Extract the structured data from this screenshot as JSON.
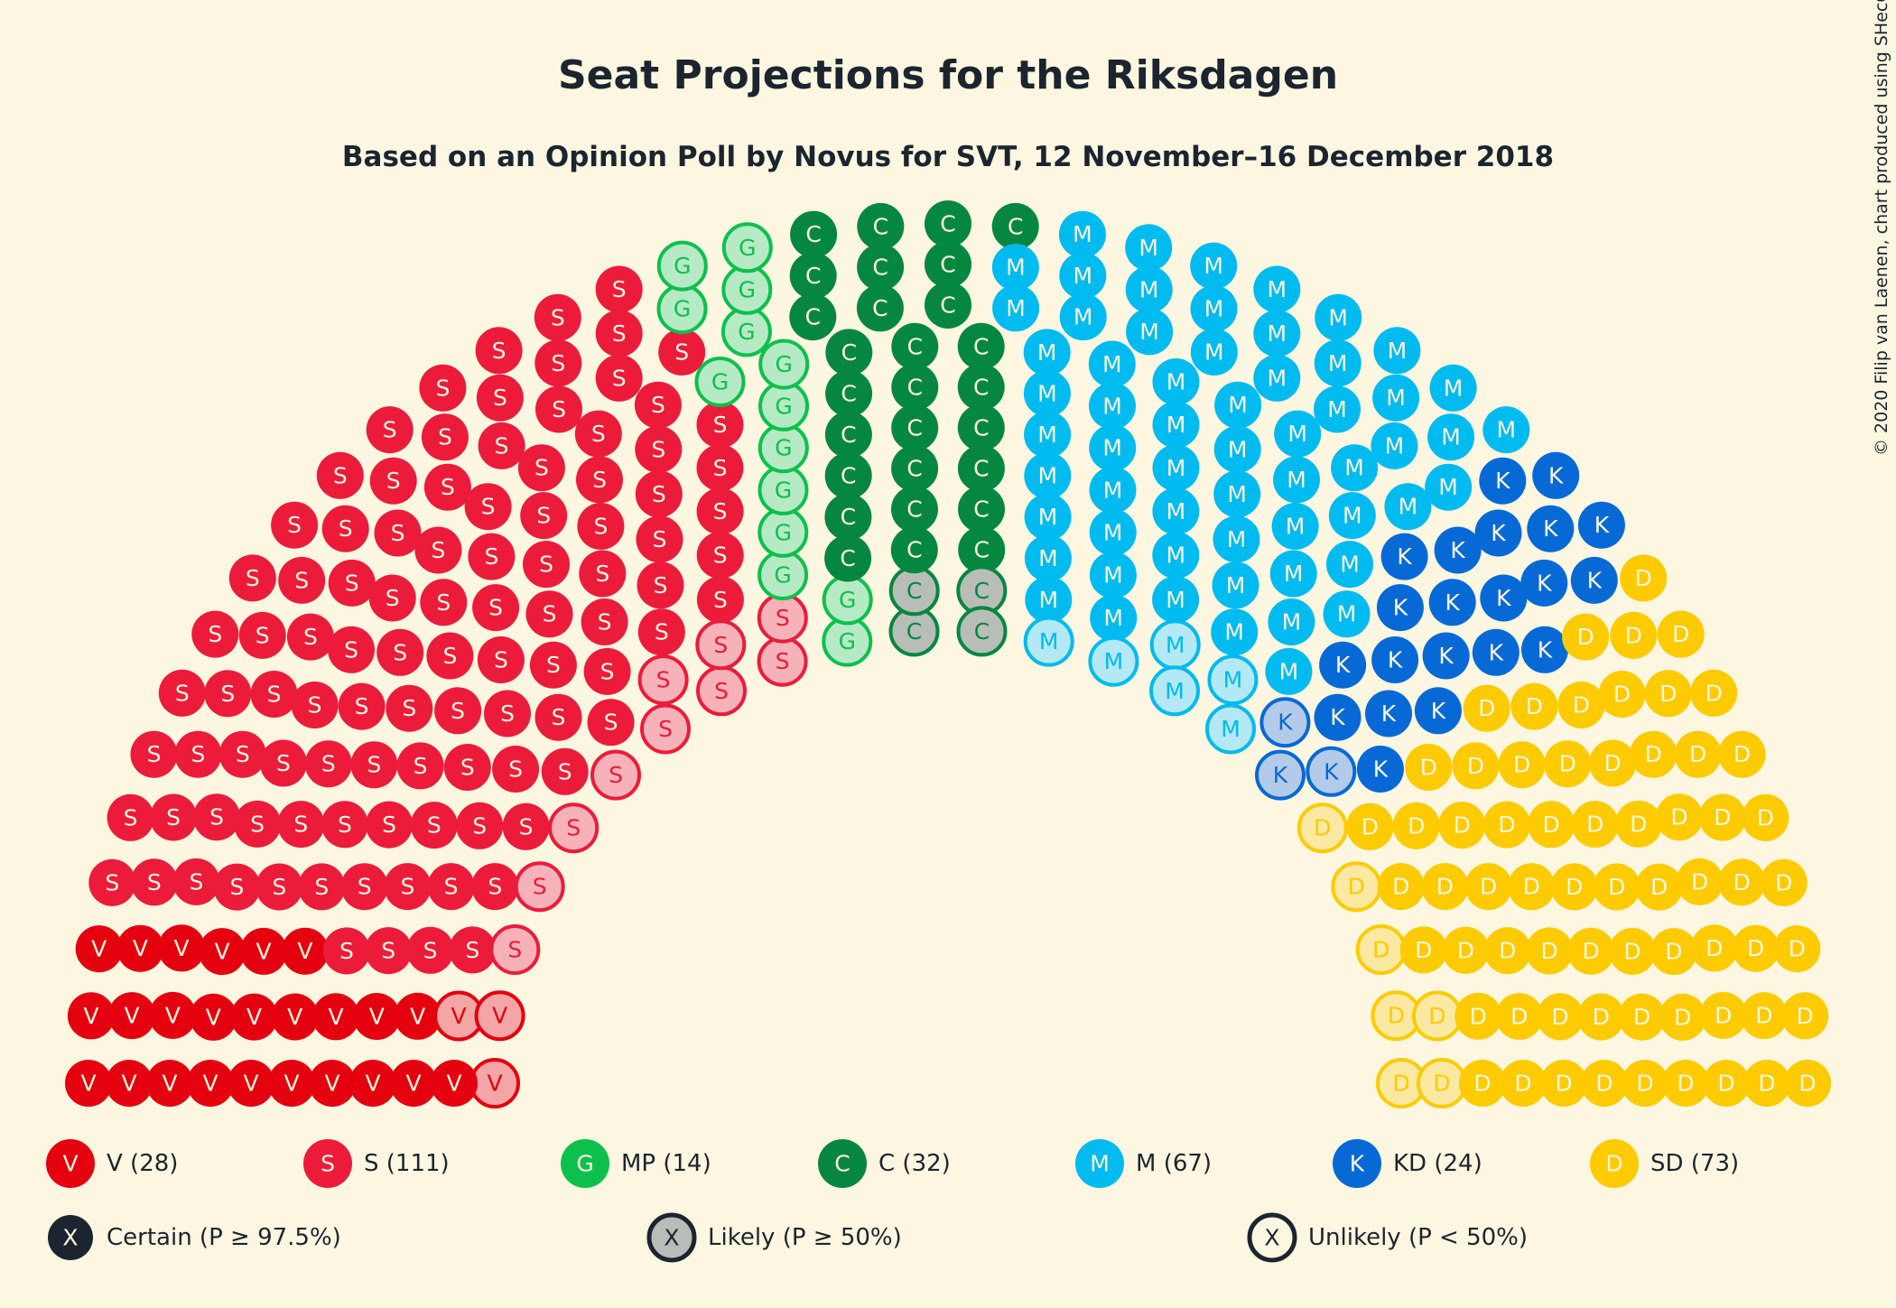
{
  "chart_data": {
    "type": "parliament",
    "title": "Seat Projections for the Riksdagen",
    "subtitle": "Based on an Opinion Poll by Novus for SVT, 12 November–16 December 2018",
    "copyright": "© 2020 Filip van Laenen, chart produced using SHecC",
    "total_seats": 349,
    "parties": [
      {
        "id": "V",
        "label": "V (28)",
        "letter": "V",
        "seats": 28,
        "certain": 25,
        "likely": 0,
        "unlikely": 3,
        "color": "#e4000e",
        "light": "#f4a5a5"
      },
      {
        "id": "S",
        "label": "S (111)",
        "letter": "S",
        "seats": 111,
        "certain": 101,
        "likely": 0,
        "unlikely": 10,
        "color": "#ec1b3a",
        "light": "#f6b1b9"
      },
      {
        "id": "MP",
        "label": "MP (14)",
        "letter": "G",
        "seats": 14,
        "certain": 0,
        "likely": 0,
        "unlikely": 14,
        "color": "#0bc14c",
        "light": "#b6eac4"
      },
      {
        "id": "C",
        "label": "C (32)",
        "letter": "C",
        "seats": 32,
        "certain": 28,
        "likely": 4,
        "unlikely": 0,
        "color": "#058740",
        "light": "#b0ccb6"
      },
      {
        "id": "M",
        "label": "M (67)",
        "letter": "M",
        "seats": 67,
        "certain": 61,
        "likely": 0,
        "unlikely": 6,
        "color": "#00bbef",
        "light": "#b3e8f4"
      },
      {
        "id": "KD",
        "label": "KD (24)",
        "letter": "K",
        "seats": 24,
        "certain": 21,
        "likely": 0,
        "unlikely": 3,
        "color": "#0669d6",
        "light": "#b3cbe8"
      },
      {
        "id": "SD",
        "label": "SD (73)",
        "letter": "D",
        "seats": 73,
        "certain": 66,
        "likely": 0,
        "unlikely": 7,
        "color": "#fdcb00",
        "light": "#fbe9a3"
      }
    ],
    "certainty_legend": [
      {
        "id": "certain",
        "letter": "X",
        "label": "Certain (P ≥ 97.5%)"
      },
      {
        "id": "likely",
        "letter": "X",
        "label": "Likely (P ≥ 50%)"
      },
      {
        "id": "unlikely",
        "letter": "X",
        "label": "Unlikely (P < 50%)"
      }
    ],
    "colors": {
      "background": "#fdf6e0",
      "text": "#1b2530",
      "likely_fill": "#b9bdb7"
    }
  }
}
